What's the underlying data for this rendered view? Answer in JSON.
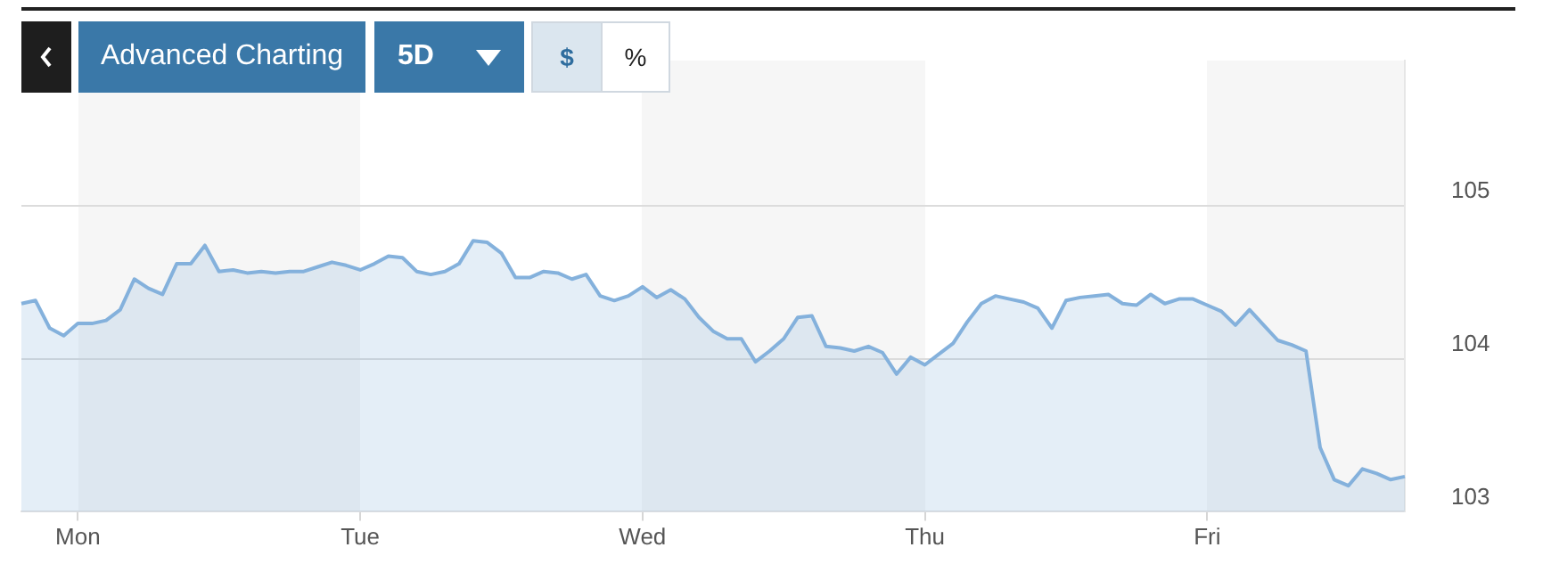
{
  "chart_data": {
    "type": "area",
    "annotations": [
      "Advanced Charting",
      "5D",
      "$",
      "%"
    ],
    "categories": [
      null,
      null,
      null,
      null,
      "Mon",
      null,
      null,
      null,
      null,
      null,
      null,
      null,
      null,
      null,
      null,
      null,
      null,
      null,
      null,
      null,
      null,
      null,
      null,
      null,
      "Tue",
      null,
      null,
      null,
      null,
      null,
      null,
      null,
      null,
      null,
      null,
      null,
      null,
      null,
      null,
      null,
      null,
      null,
      null,
      null,
      "Wed",
      null,
      null,
      null,
      null,
      null,
      null,
      null,
      null,
      null,
      null,
      null,
      null,
      null,
      null,
      null,
      null,
      null,
      null,
      null,
      "Thu",
      null,
      null,
      null,
      null,
      null,
      null,
      null,
      null,
      null,
      null,
      null,
      null,
      null,
      null,
      null,
      null,
      null,
      null,
      null,
      "Fri",
      null,
      null,
      null,
      null,
      null,
      null,
      null,
      null,
      null,
      null,
      null,
      null,
      null,
      null
    ],
    "ylim": [
      103,
      105.95
    ],
    "yticks": [
      103,
      104,
      105
    ],
    "grid": "y",
    "series": [
      {
        "color": "#84b1dc",
        "values": [
          104.36,
          104.38,
          104.2,
          104.15,
          104.23,
          104.23,
          104.25,
          104.32,
          104.52,
          104.46,
          104.42,
          104.62,
          104.62,
          104.74,
          104.57,
          104.58,
          104.56,
          104.57,
          104.56,
          104.57,
          104.57,
          104.6,
          104.63,
          104.61,
          104.58,
          104.62,
          104.67,
          104.66,
          104.57,
          104.55,
          104.57,
          104.62,
          104.77,
          104.76,
          104.69,
          104.53,
          104.53,
          104.57,
          104.56,
          104.52,
          104.55,
          104.41,
          104.38,
          104.41,
          104.47,
          104.4,
          104.45,
          104.39,
          104.27,
          104.18,
          104.13,
          104.13,
          103.98,
          104.05,
          104.13,
          104.27,
          104.28,
          104.08,
          104.07,
          104.05,
          104.08,
          104.04,
          103.9,
          104.01,
          103.96,
          104.03,
          104.1,
          104.24,
          104.36,
          104.41,
          104.39,
          104.37,
          104.33,
          104.2,
          104.38,
          104.4,
          104.41,
          104.42,
          104.36,
          104.35,
          104.42,
          104.36,
          104.39,
          104.39,
          104.35,
          104.31,
          104.22,
          104.32,
          104.22,
          104.12,
          104.09,
          104.05,
          103.42,
          103.21,
          103.17,
          103.28,
          103.25,
          103.21,
          103.23
        ]
      }
    ]
  }
}
